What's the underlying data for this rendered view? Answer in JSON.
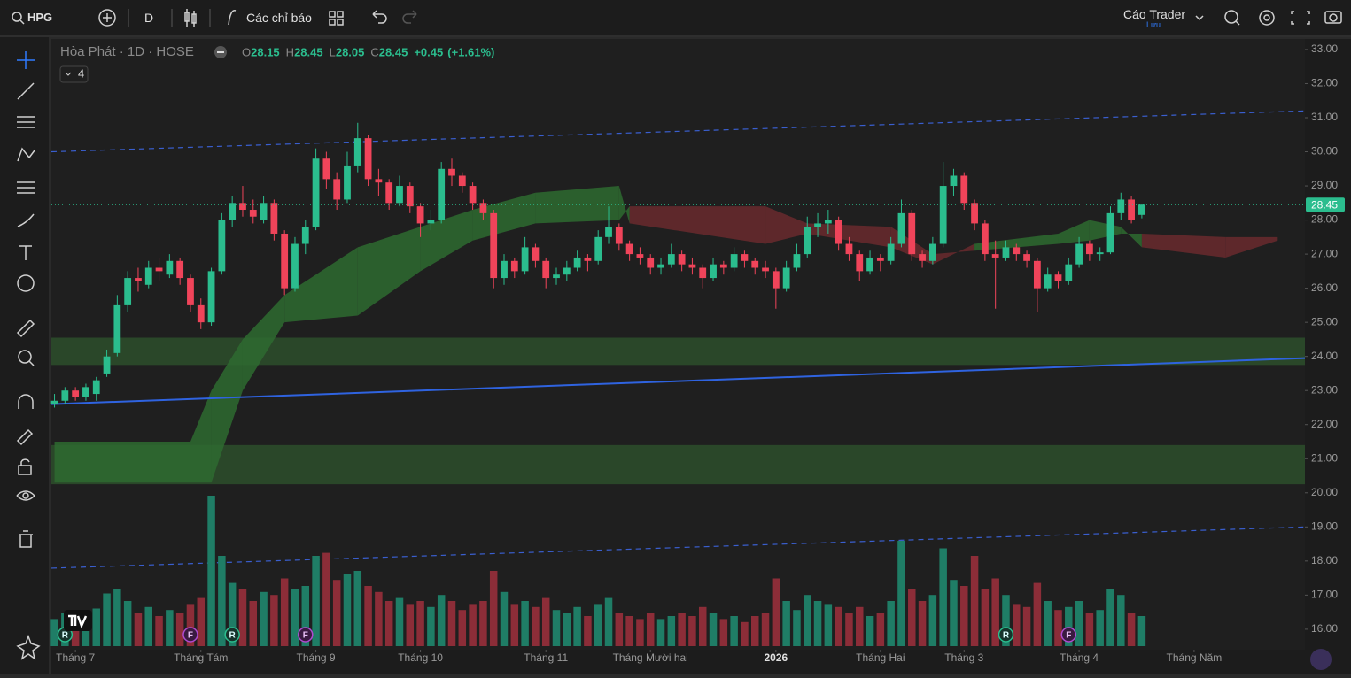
{
  "toolbar": {
    "symbol": "HPG",
    "interval": "D",
    "indicators": "Các chỉ báo",
    "layout_name": "Cáo Trader",
    "save_status": "Lưu"
  },
  "chart_data": {
    "type": "candlestick",
    "title": "Hòa Phát · 1D · HOSE",
    "indicator_count": 4,
    "ohlc_letters": [
      "O",
      "H",
      "L",
      "C"
    ],
    "change": {
      "value": 0.45,
      "label": "+0.45"
    },
    "change_pct": {
      "value": 1.61,
      "label": "(+1.61%)"
    },
    "up_color": "#2bbd8e",
    "down_color": "#f0445a",
    "volume_up_color": "#1f7d66",
    "volume_down_color": "#8c2d38",
    "xlim": [
      -0.3,
      119.6
    ],
    "ylim": [
      15.53,
      33.31
    ],
    "volume_lim": [
      0,
      100
    ],
    "yticks": [
      {
        "value": 16,
        "label": "16.00"
      },
      {
        "value": 17,
        "label": "17.00"
      },
      {
        "value": 18,
        "label": "18.00"
      },
      {
        "value": 19,
        "label": "19.00"
      },
      {
        "value": 20,
        "label": "20.00"
      },
      {
        "value": 21,
        "label": "21.00"
      },
      {
        "value": 22,
        "label": "22.00"
      },
      {
        "value": 23,
        "label": "23.00"
      },
      {
        "value": 24,
        "label": "24.00"
      },
      {
        "value": 25,
        "label": "25.00"
      },
      {
        "value": 26,
        "label": "26.00"
      },
      {
        "value": 27,
        "label": "27.00"
      },
      {
        "value": 28,
        "label": "28.00"
      },
      {
        "value": 29,
        "label": "29.00"
      },
      {
        "value": 30,
        "label": "30.00"
      },
      {
        "value": 31,
        "label": "31.00"
      },
      {
        "value": 32,
        "label": "32.00"
      },
      {
        "value": 33,
        "label": "33.00"
      }
    ],
    "xticks": [
      {
        "value": 2,
        "label": "Tháng 7"
      },
      {
        "value": 14,
        "label": "Tháng Tám"
      },
      {
        "value": 25,
        "label": "Tháng 9"
      },
      {
        "value": 35,
        "label": "Tháng 10"
      },
      {
        "value": 47,
        "label": "Tháng 11"
      },
      {
        "value": 57,
        "label": "Tháng Mười hai"
      },
      {
        "value": 69,
        "label": "2026"
      },
      {
        "value": 79,
        "label": "Tháng Hai"
      },
      {
        "value": 87,
        "label": "Tháng 3"
      },
      {
        "value": 98,
        "label": "Tháng 4"
      },
      {
        "value": 109,
        "label": "Tháng Năm"
      }
    ],
    "ohlc": [
      [
        22.6,
        22.9,
        22.5,
        22.7
      ],
      [
        22.7,
        23.1,
        22.6,
        23.0
      ],
      [
        23.0,
        23.1,
        22.7,
        22.8
      ],
      [
        22.8,
        23.2,
        22.7,
        23.1
      ],
      [
        22.9,
        23.4,
        22.7,
        23.3
      ],
      [
        23.5,
        24.2,
        23.4,
        24.0
      ],
      [
        24.1,
        25.8,
        24.0,
        25.5
      ],
      [
        25.5,
        26.5,
        25.3,
        26.3
      ],
      [
        26.3,
        26.6,
        25.9,
        26.2
      ],
      [
        26.1,
        26.8,
        26.0,
        26.6
      ],
      [
        26.6,
        26.9,
        26.2,
        26.5
      ],
      [
        26.4,
        27.0,
        26.3,
        26.8
      ],
      [
        26.8,
        26.9,
        26.1,
        26.3
      ],
      [
        26.3,
        26.4,
        25.3,
        25.5
      ],
      [
        25.5,
        25.7,
        24.8,
        25.0
      ],
      [
        25.0,
        26.6,
        24.9,
        26.5
      ],
      [
        26.5,
        28.2,
        26.4,
        28.0
      ],
      [
        28.0,
        28.7,
        27.8,
        28.5
      ],
      [
        28.5,
        29.0,
        28.1,
        28.3
      ],
      [
        28.3,
        28.6,
        27.9,
        28.1
      ],
      [
        28.0,
        28.7,
        27.9,
        28.5
      ],
      [
        28.5,
        28.6,
        27.4,
        27.6
      ],
      [
        27.6,
        27.7,
        25.8,
        26.0
      ],
      [
        26.0,
        27.5,
        25.9,
        27.3
      ],
      [
        27.3,
        28.0,
        27.0,
        27.8
      ],
      [
        27.8,
        30.1,
        27.7,
        29.8
      ],
      [
        29.8,
        30.0,
        28.9,
        29.2
      ],
      [
        29.2,
        29.4,
        28.3,
        28.6
      ],
      [
        28.6,
        30.0,
        28.5,
        29.6
      ],
      [
        29.6,
        30.85,
        29.4,
        30.4
      ],
      [
        30.4,
        30.5,
        29.0,
        29.2
      ],
      [
        29.2,
        29.5,
        28.7,
        29.1
      ],
      [
        29.1,
        29.2,
        28.3,
        28.5
      ],
      [
        28.5,
        29.3,
        28.4,
        29.0
      ],
      [
        29.0,
        29.1,
        28.2,
        28.4
      ],
      [
        28.4,
        28.5,
        27.5,
        27.9
      ],
      [
        27.9,
        28.3,
        27.7,
        28.0
      ],
      [
        28.0,
        29.7,
        27.9,
        29.5
      ],
      [
        29.5,
        29.8,
        29.0,
        29.3
      ],
      [
        29.3,
        29.4,
        28.8,
        29.0
      ],
      [
        29.0,
        29.1,
        28.3,
        28.5
      ],
      [
        28.5,
        28.6,
        28.0,
        28.2
      ],
      [
        28.2,
        28.3,
        26.0,
        26.3
      ],
      [
        26.3,
        27.0,
        26.1,
        26.8
      ],
      [
        26.8,
        26.9,
        26.3,
        26.5
      ],
      [
        26.5,
        27.5,
        26.4,
        27.2
      ],
      [
        27.2,
        27.3,
        26.6,
        26.8
      ],
      [
        26.8,
        26.9,
        26.0,
        26.3
      ],
      [
        26.3,
        26.6,
        26.1,
        26.4
      ],
      [
        26.4,
        26.8,
        26.2,
        26.6
      ],
      [
        26.6,
        27.1,
        26.5,
        26.9
      ],
      [
        26.9,
        27.0,
        26.5,
        26.8
      ],
      [
        26.8,
        27.7,
        26.7,
        27.5
      ],
      [
        27.5,
        28.4,
        27.3,
        27.8
      ],
      [
        27.8,
        27.9,
        27.1,
        27.3
      ],
      [
        27.3,
        27.4,
        26.8,
        27.0
      ],
      [
        27.0,
        27.2,
        26.7,
        26.9
      ],
      [
        26.9,
        27.0,
        26.4,
        26.6
      ],
      [
        26.6,
        26.9,
        26.4,
        26.7
      ],
      [
        26.7,
        27.3,
        26.6,
        27.0
      ],
      [
        27.0,
        27.1,
        26.5,
        26.7
      ],
      [
        26.7,
        26.9,
        26.4,
        26.6
      ],
      [
        26.6,
        26.7,
        26.0,
        26.3
      ],
      [
        26.3,
        26.9,
        26.2,
        26.7
      ],
      [
        26.7,
        26.8,
        26.4,
        26.6
      ],
      [
        26.6,
        27.2,
        26.5,
        27.0
      ],
      [
        27.0,
        27.1,
        26.6,
        26.8
      ],
      [
        26.8,
        26.9,
        26.4,
        26.6
      ],
      [
        26.6,
        26.8,
        26.3,
        26.5
      ],
      [
        26.5,
        26.6,
        25.4,
        26.0
      ],
      [
        26.0,
        26.8,
        25.9,
        26.6
      ],
      [
        26.6,
        27.3,
        26.5,
        27.0
      ],
      [
        27.0,
        28.1,
        26.9,
        27.8
      ],
      [
        27.8,
        28.2,
        27.5,
        27.9
      ],
      [
        27.9,
        28.3,
        27.6,
        28.0
      ],
      [
        28.0,
        28.1,
        27.1,
        27.3
      ],
      [
        27.3,
        27.5,
        26.8,
        27.0
      ],
      [
        27.0,
        27.1,
        26.2,
        26.5
      ],
      [
        26.5,
        27.1,
        26.4,
        26.9
      ],
      [
        26.9,
        27.0,
        26.5,
        26.8
      ],
      [
        26.8,
        27.5,
        26.7,
        27.3
      ],
      [
        27.3,
        28.6,
        27.2,
        28.2
      ],
      [
        28.2,
        28.3,
        26.8,
        27.0
      ],
      [
        27.0,
        27.1,
        26.6,
        26.8
      ],
      [
        26.8,
        27.5,
        26.7,
        27.3
      ],
      [
        27.3,
        29.7,
        27.2,
        29.0
      ],
      [
        29.0,
        29.5,
        28.7,
        29.3
      ],
      [
        29.3,
        29.4,
        28.3,
        28.5
      ],
      [
        28.5,
        28.6,
        27.7,
        27.9
      ],
      [
        27.9,
        28.0,
        26.8,
        27.0
      ],
      [
        27.0,
        27.4,
        25.4,
        26.9
      ],
      [
        26.9,
        27.4,
        26.8,
        27.2
      ],
      [
        27.2,
        27.3,
        26.8,
        27.0
      ],
      [
        27.0,
        27.1,
        26.6,
        26.8
      ],
      [
        26.8,
        26.9,
        25.3,
        26.0
      ],
      [
        26.0,
        26.6,
        25.9,
        26.4
      ],
      [
        26.4,
        26.5,
        26.0,
        26.2
      ],
      [
        26.2,
        26.9,
        26.1,
        26.7
      ],
      [
        26.7,
        27.5,
        26.6,
        27.3
      ],
      [
        27.3,
        27.4,
        26.8,
        27.0
      ],
      [
        27.0,
        27.2,
        26.8,
        27.05
      ],
      [
        27.05,
        28.4,
        27.0,
        28.2
      ],
      [
        28.2,
        28.8,
        28.0,
        28.6
      ],
      [
        28.6,
        28.7,
        27.9,
        28.0
      ],
      [
        28.15,
        28.45,
        28.05,
        28.45
      ]
    ],
    "volume": [
      18,
      22,
      14,
      20,
      25,
      35,
      38,
      30,
      22,
      26,
      20,
      24,
      22,
      28,
      32,
      100,
      60,
      42,
      38,
      30,
      36,
      34,
      45,
      38,
      40,
      60,
      62,
      44,
      48,
      50,
      40,
      36,
      30,
      32,
      28,
      30,
      26,
      34,
      30,
      24,
      28,
      30,
      50,
      36,
      28,
      30,
      26,
      32,
      24,
      22,
      26,
      20,
      28,
      32,
      22,
      20,
      18,
      22,
      18,
      20,
      22,
      20,
      26,
      22,
      18,
      20,
      16,
      20,
      22,
      45,
      30,
      24,
      34,
      30,
      28,
      26,
      22,
      26,
      20,
      22,
      30,
      70,
      38,
      30,
      34,
      65,
      44,
      40,
      60,
      38,
      45,
      34,
      28,
      26,
      42,
      30,
      24,
      26,
      30,
      22,
      24,
      38,
      34,
      22,
      20
    ],
    "cloud": {
      "index": [
        0,
        13,
        15,
        18,
        22,
        29,
        35,
        40,
        46,
        54,
        55,
        68,
        72,
        80,
        84,
        88,
        96,
        99,
        102,
        104,
        112,
        117
      ],
      "span_a": [
        21.5,
        21.5,
        23.0,
        24.5,
        25.8,
        27.2,
        27.8,
        28.3,
        28.8,
        29.0,
        27.9,
        27.3,
        27.6,
        27.2,
        26.7,
        27.3,
        27.6,
        28.0,
        27.8,
        27.2,
        26.9,
        27.4
      ],
      "span_b": [
        20.3,
        20.3,
        20.3,
        23.0,
        25.0,
        25.2,
        26.5,
        27.4,
        27.9,
        28.0,
        28.4,
        28.4,
        27.9,
        27.8,
        27.0,
        27.1,
        27.3,
        27.4,
        27.6,
        27.6,
        27.5,
        27.5
      ],
      "up_color": "#2e6b30",
      "down_color": "#6a2a2e"
    },
    "zones": [
      [
        23.75,
        24.55
      ],
      [
        20.25,
        21.4
      ]
    ],
    "zone_color": "#2d4f2c",
    "trendlines": [
      {
        "from": [
          -0.3,
          22.6
        ],
        "to": [
          119.6,
          23.95
        ],
        "style": "solid",
        "color": "#2f63e0"
      },
      {
        "from": [
          -0.3,
          30.0
        ],
        "to": [
          119.6,
          31.2
        ],
        "style": "dashed",
        "color": "#3a5fd0"
      },
      {
        "from": [
          -0.3,
          17.79
        ],
        "to": [
          119.6,
          19.0
        ],
        "style": "dashed",
        "color": "#3a5fd0"
      }
    ],
    "events": [
      {
        "label": "R",
        "index": 1
      },
      {
        "label": "F",
        "index": 13
      },
      {
        "label": "R",
        "index": 17
      },
      {
        "label": "F",
        "index": 24
      },
      {
        "label": "R",
        "index": 91
      },
      {
        "label": "F",
        "index": 97
      }
    ]
  }
}
